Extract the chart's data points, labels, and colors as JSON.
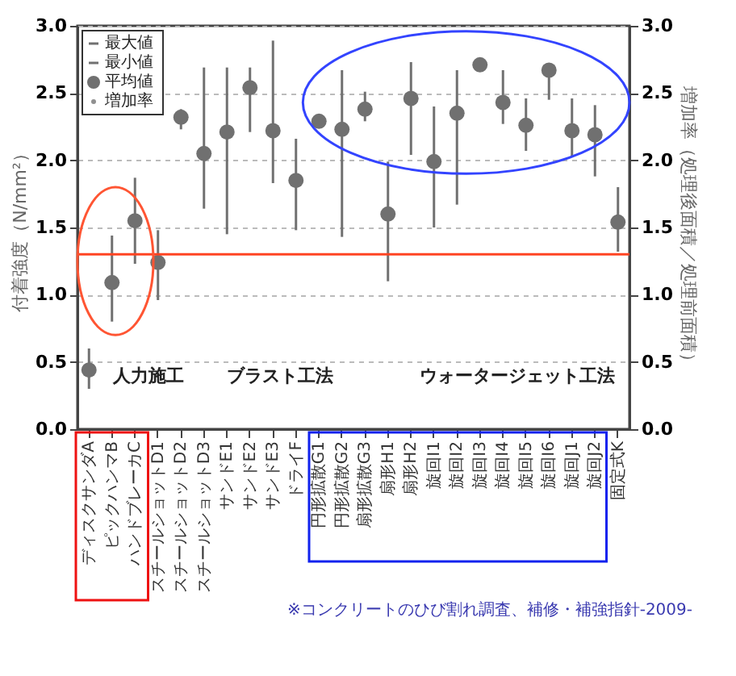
{
  "chart_data": {
    "type": "scatter",
    "ylabel": "付着強度（N/mm²）",
    "y2label": "増加率（処理後面積／処理前面積）",
    "categories": [
      "ディスクサンダA",
      "ピックハンマB",
      "ハンドブレーカC",
      "スチールショットD1",
      "スチールショットD2",
      "スチールショットD3",
      "サンドE1",
      "サンドE2",
      "サンドE3",
      "ドライF",
      "円形拡散G1",
      "円形拡散G2",
      "扇形拡散G3",
      "扇形H1",
      "扇形H2",
      "旋回I1",
      "旋回I2",
      "旋回I3",
      "旋回I4",
      "旋回I5",
      "旋回I6",
      "旋回J1",
      "旋回J2",
      "固定式K"
    ],
    "series": [
      {
        "name": "平均値",
        "color": "#707070",
        "marker": "circle",
        "values": [
          0.44,
          1.09,
          1.55,
          1.24,
          2.32,
          2.05,
          2.21,
          2.54,
          2.22,
          1.85,
          2.29,
          2.23,
          2.38,
          1.6,
          2.46,
          1.99,
          2.35,
          2.71,
          2.43,
          2.26,
          2.67,
          2.22,
          2.19,
          1.54
        ],
        "errors": [
          [
            0.3,
            0.6
          ],
          [
            0.8,
            1.44
          ],
          [
            1.23,
            1.87
          ],
          [
            0.96,
            1.48
          ],
          [
            2.23,
            2.38
          ],
          [
            1.64,
            2.69
          ],
          [
            1.45,
            2.69
          ],
          [
            2.21,
            2.69
          ],
          [
            1.83,
            2.89
          ],
          [
            1.48,
            2.16
          ],
          null,
          [
            1.43,
            2.67
          ],
          [
            2.29,
            2.51
          ],
          [
            1.1,
            1.99
          ],
          [
            2.04,
            2.73
          ],
          [
            1.5,
            2.4
          ],
          [
            1.67,
            2.67
          ],
          null,
          [
            2.27,
            2.67
          ],
          [
            2.07,
            2.46
          ],
          [
            2.45,
            2.7
          ],
          [
            2.03,
            2.46
          ],
          [
            1.88,
            2.41
          ],
          [
            1.32,
            1.8
          ]
        ]
      }
    ],
    "ylim": [
      0,
      3
    ],
    "yticks": [
      {
        "value": 0,
        "label": "0.0"
      },
      {
        "value": 0.5,
        "label": "0.5"
      },
      {
        "value": 1,
        "label": "1.0"
      },
      {
        "value": 1.5,
        "label": "1.5"
      },
      {
        "value": 2,
        "label": "2.0"
      },
      {
        "value": 2.5,
        "label": "2.5"
      },
      {
        "value": 3,
        "label": "3.0"
      }
    ],
    "y2lim": [
      0,
      3
    ],
    "y2ticks": [
      {
        "value": 0,
        "label": "0.0"
      },
      {
        "value": 0.5,
        "label": "0.5"
      },
      {
        "value": 1,
        "label": "1.0"
      },
      {
        "value": 1.5,
        "label": "1.5"
      },
      {
        "value": 2,
        "label": "2.0"
      },
      {
        "value": 2.5,
        "label": "2.5"
      },
      {
        "value": 3,
        "label": "3.0"
      }
    ],
    "ref_lines": [
      {
        "axis": "y",
        "value": 1.3,
        "color": "#ff4422"
      }
    ],
    "annotations": [
      "人力施工",
      "ブラスト工法",
      "ウォータージェット工法",
      "※コンクリートのひび割れ調査、補修・補強指針-2009-",
      "最大値",
      "最小値",
      "増加率"
    ],
    "grid": "y",
    "legend": "top left"
  }
}
